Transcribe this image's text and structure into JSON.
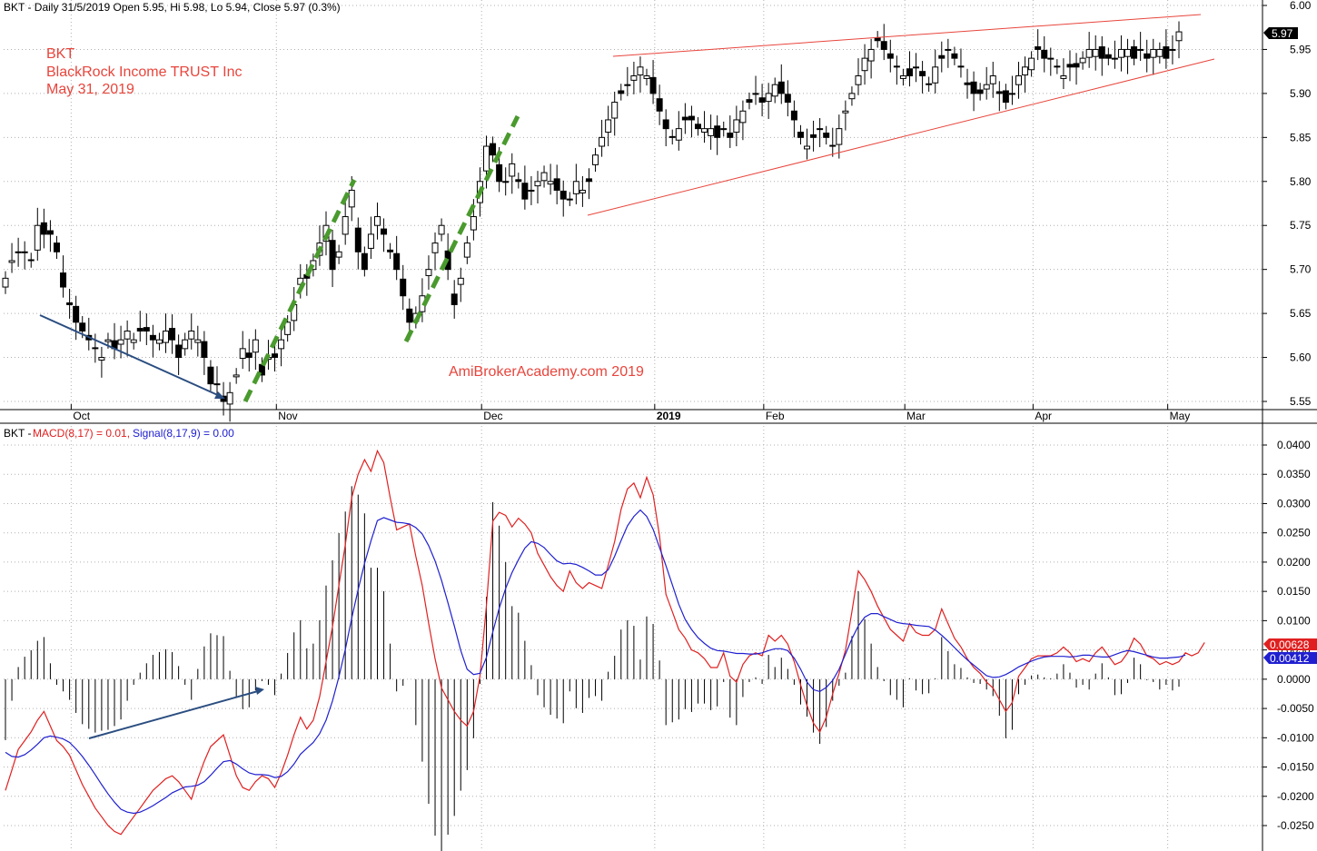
{
  "price_panel": {
    "header": "BKT - Daily 31/5/2019 Open 5.95, Hi 5.98, Lo 5.94, Close 5.97 (0.3%)",
    "annotation_lines": [
      "BKT",
      "BlackRock Income TRUST Inc",
      "May 31, 2019"
    ],
    "watermark": "AmiBrokerAcademy.com  2019",
    "last_price_label": "5.97",
    "colors": {
      "up_candle": "#ffffff",
      "down_candle": "#000000",
      "trendline": "#e8453c",
      "green_trend": "#4a9a2e",
      "arrow": "#2a4d80",
      "grid": "#b0b0b0",
      "annotation": "#e8453c"
    }
  },
  "macd_panel": {
    "header": {
      "prefix": "BKT - ",
      "macd_label": "MACD(8,17) = 0.01,",
      "signal_label": "Signal(8,17,9) = 0.00"
    },
    "last_macd_label": "0.00628",
    "last_signal_label": "0.00412",
    "colors": {
      "macd": "#e02020",
      "signal": "#2020d0",
      "histogram": "#000000"
    }
  },
  "chart_data": [
    {
      "type": "candlestick",
      "title": "BKT - Daily 31/5/2019",
      "ylim": [
        5.53,
        6.0
      ],
      "ytick_labels": [
        "6.00",
        "5.95",
        "5.90",
        "5.85",
        "5.80",
        "5.75",
        "5.70",
        "5.65",
        "5.60",
        "5.55"
      ],
      "xtick_labels": [
        "Oct",
        "Nov",
        "Dec",
        "2019",
        "Feb",
        "Mar",
        "Apr",
        "May"
      ],
      "last_bar": {
        "open": 5.95,
        "high": 5.98,
        "low": 5.94,
        "close": 5.97
      },
      "series_close": [
        5.69,
        5.71,
        5.72,
        5.72,
        5.71,
        5.75,
        5.74,
        5.74,
        5.72,
        5.68,
        5.66,
        5.64,
        5.63,
        5.62,
        5.61,
        5.6,
        5.62,
        5.61,
        5.62,
        5.63,
        5.62,
        5.63,
        5.63,
        5.62,
        5.62,
        5.63,
        5.62,
        5.6,
        5.62,
        5.63,
        5.62,
        5.6,
        5.57,
        5.57,
        5.55,
        5.56,
        5.58,
        5.61,
        5.6,
        5.62,
        5.58,
        5.6,
        5.6,
        5.62,
        5.64,
        5.66,
        5.69,
        5.69,
        5.71,
        5.73,
        5.75,
        5.7,
        5.72,
        5.76,
        5.79,
        5.72,
        5.7,
        5.74,
        5.76,
        5.74,
        5.72,
        5.7,
        5.67,
        5.64,
        5.65,
        5.67,
        5.7,
        5.73,
        5.75,
        5.7,
        5.66,
        5.69,
        5.73,
        5.76,
        5.8,
        5.84,
        5.83,
        5.8,
        5.8,
        5.82,
        5.8,
        5.78,
        5.79,
        5.8,
        5.81,
        5.8,
        5.79,
        5.78,
        5.78,
        5.8,
        5.79,
        5.8,
        5.83,
        5.85,
        5.87,
        5.89,
        5.9,
        5.91,
        5.92,
        5.93,
        5.92,
        5.9,
        5.88,
        5.86,
        5.85,
        5.86,
        5.87,
        5.87,
        5.86,
        5.86,
        5.86,
        5.85,
        5.86,
        5.85,
        5.87,
        5.88,
        5.89,
        5.9,
        5.89,
        5.9,
        5.91,
        5.9,
        5.89,
        5.87,
        5.85,
        5.84,
        5.85,
        5.86,
        5.85,
        5.84,
        5.86,
        5.88,
        5.9,
        5.92,
        5.94,
        5.95,
        5.96,
        5.95,
        5.94,
        5.93,
        5.92,
        5.92,
        5.93,
        5.92,
        5.91,
        5.93,
        5.94,
        5.95,
        5.94,
        5.93,
        5.91,
        5.9,
        5.9,
        5.91,
        5.92,
        5.9,
        5.89,
        5.9,
        5.92,
        5.93,
        5.94,
        5.95,
        5.94,
        5.94,
        5.93,
        5.92,
        5.93,
        5.93,
        5.94,
        5.95,
        5.95,
        5.94,
        5.94,
        5.94,
        5.95,
        5.95,
        5.94,
        5.95,
        5.94,
        5.95,
        5.95,
        5.94,
        5.95,
        5.97
      ]
    },
    {
      "type": "line",
      "title": "BKT - MACD(8,17) = 0.01, Signal(8,17,9) = 0.00",
      "ylim": [
        -0.0275,
        0.0415
      ],
      "ytick_labels": [
        "0.0400",
        "0.0350",
        "0.0300",
        "0.0250",
        "0.0200",
        "0.0150",
        "0.0100",
        "0.0050",
        "0.0000",
        "-0.0050",
        "-0.0100",
        "-0.0150",
        "-0.0200",
        "-0.0250"
      ],
      "series": [
        {
          "name": "MACD(8,17)",
          "color": "#e02020",
          "values": [
            -0.019,
            -0.0155,
            -0.012,
            -0.0105,
            -0.009,
            -0.007,
            -0.0055,
            -0.008,
            -0.0105,
            -0.0115,
            -0.013,
            -0.0155,
            -0.018,
            -0.02,
            -0.022,
            -0.0235,
            -0.025,
            -0.026,
            -0.0265,
            -0.025,
            -0.0235,
            -0.022,
            -0.0205,
            -0.019,
            -0.018,
            -0.017,
            -0.0165,
            -0.0175,
            -0.019,
            -0.0205,
            -0.017,
            -0.014,
            -0.0115,
            -0.0105,
            -0.0095,
            -0.013,
            -0.0165,
            -0.0185,
            -0.019,
            -0.0175,
            -0.0165,
            -0.017,
            -0.0185,
            -0.016,
            -0.013,
            -0.0095,
            -0.0065,
            -0.0085,
            -0.007,
            -0.003,
            0.003,
            0.009,
            0.016,
            0.023,
            0.031,
            0.035,
            0.0375,
            0.0355,
            0.039,
            0.037,
            0.031,
            0.0255,
            0.026,
            0.0265,
            0.021,
            0.016,
            0.0095,
            0.0035,
            -0.0015,
            -0.0035,
            -0.0055,
            -0.007,
            -0.008,
            -0.0055,
            0.0005,
            0.0125,
            0.027,
            0.0285,
            0.028,
            0.026,
            0.0275,
            0.0265,
            0.025,
            0.0215,
            0.0195,
            0.0175,
            0.016,
            0.015,
            0.0185,
            0.0165,
            0.0155,
            0.0165,
            0.016,
            0.0155,
            0.0195,
            0.0235,
            0.029,
            0.0325,
            0.0335,
            0.031,
            0.0345,
            0.0315,
            0.0245,
            0.0145,
            0.0115,
            0.0085,
            0.007,
            0.005,
            0.0045,
            0.0035,
            0.002,
            0.002,
            0.0045,
            0.0005,
            -0.0005,
            0.0025,
            0.004,
            0.0045,
            0.004,
            0.0075,
            0.0065,
            0.0075,
            0.006,
            0.003,
            -0.001,
            -0.0045,
            -0.0075,
            -0.009,
            -0.0065,
            -0.0025,
            0.001,
            0.005,
            0.0115,
            0.0185,
            0.017,
            0.015,
            0.0125,
            0.0105,
            0.0085,
            0.0075,
            0.0065,
            0.0095,
            0.008,
            0.0075,
            0.0075,
            0.0085,
            0.012,
            0.0095,
            0.007,
            0.0055,
            0.0035,
            0.002,
            0.001,
            -0.0005,
            -0.0015,
            -0.0035,
            -0.0055,
            -0.004,
            0.0005,
            0.002,
            0.0035,
            0.004,
            0.004,
            0.004,
            0.0045,
            0.0055,
            0.0045,
            0.003,
            0.0035,
            0.003,
            0.0045,
            0.0055,
            0.004,
            0.0025,
            0.003,
            0.0045,
            0.007,
            0.006,
            0.004,
            0.0035,
            0.0025,
            0.003,
            0.0025,
            0.003,
            0.0045,
            0.004,
            0.0045,
            0.00628
          ]
        },
        {
          "name": "Signal(8,17,9)",
          "color": "#2020d0",
          "values": [
            -0.0125,
            -0.0132,
            -0.0133,
            -0.0129,
            -0.0121,
            -0.0111,
            -0.01,
            -0.0097,
            -0.0099,
            -0.0102,
            -0.0108,
            -0.0119,
            -0.0132,
            -0.0147,
            -0.0163,
            -0.018,
            -0.0196,
            -0.021,
            -0.0222,
            -0.0227,
            -0.0229,
            -0.0227,
            -0.0222,
            -0.0216,
            -0.0209,
            -0.0202,
            -0.0194,
            -0.0189,
            -0.0184,
            -0.0183,
            -0.0181,
            -0.0175,
            -0.0164,
            -0.0152,
            -0.0141,
            -0.0139,
            -0.0145,
            -0.0153,
            -0.016,
            -0.0163,
            -0.0163,
            -0.0164,
            -0.0168,
            -0.0166,
            -0.0158,
            -0.0145,
            -0.0128,
            -0.0118,
            -0.0108,
            -0.0093,
            -0.007,
            -0.0037,
            0.0004,
            0.0051,
            0.0104,
            0.0153,
            0.0198,
            0.0236,
            0.0271,
            0.0276,
            0.0272,
            0.0268,
            0.0267,
            0.0265,
            0.0259,
            0.0248,
            0.0228,
            0.0202,
            0.0169,
            0.0131,
            0.0091,
            0.0049,
            0.0017,
            0.0008,
            0.001,
            0.0037,
            0.0081,
            0.0121,
            0.0155,
            0.0182,
            0.0204,
            0.0224,
            0.0235,
            0.0232,
            0.0225,
            0.0213,
            0.0202,
            0.0197,
            0.0198,
            0.0196,
            0.0191,
            0.0185,
            0.0178,
            0.0178,
            0.0187,
            0.021,
            0.0237,
            0.0262,
            0.0278,
            0.0289,
            0.0278,
            0.0256,
            0.0225,
            0.0194,
            0.0161,
            0.0128,
            0.0102,
            0.0085,
            0.0071,
            0.0061,
            0.0053,
            0.0049,
            0.0048,
            0.0046,
            0.0044,
            0.0044,
            0.0043,
            0.0043,
            0.0045,
            0.0049,
            0.0052,
            0.0052,
            0.0049,
            0.0036,
            0.0017,
            -0.0005,
            -0.0018,
            -0.0021,
            -0.0014,
            -0.0002,
            0.0017,
            0.0043,
            0.0069,
            0.0091,
            0.0106,
            0.0112,
            0.0112,
            0.0107,
            0.0102,
            0.0097,
            0.0095,
            0.0094,
            0.0092,
            0.0091,
            0.009,
            0.0084,
            0.0075,
            0.0065,
            0.0054,
            0.0043,
            0.0033,
            0.0024,
            0.0015,
            0.0006,
            0.0003,
            0.0004,
            0.0008,
            0.0014,
            0.0021,
            0.0026,
            0.0031,
            0.0035,
            0.0038,
            0.0039,
            0.0039,
            0.0039,
            0.0038,
            0.0039,
            0.0041,
            0.0041,
            0.0039,
            0.0038,
            0.0038,
            0.0042,
            0.0046,
            0.0049,
            0.0047,
            0.0044,
            0.0041,
            0.0038,
            0.0036,
            0.0036,
            0.0037,
            0.0038,
            0.00412
          ]
        }
      ]
    }
  ]
}
